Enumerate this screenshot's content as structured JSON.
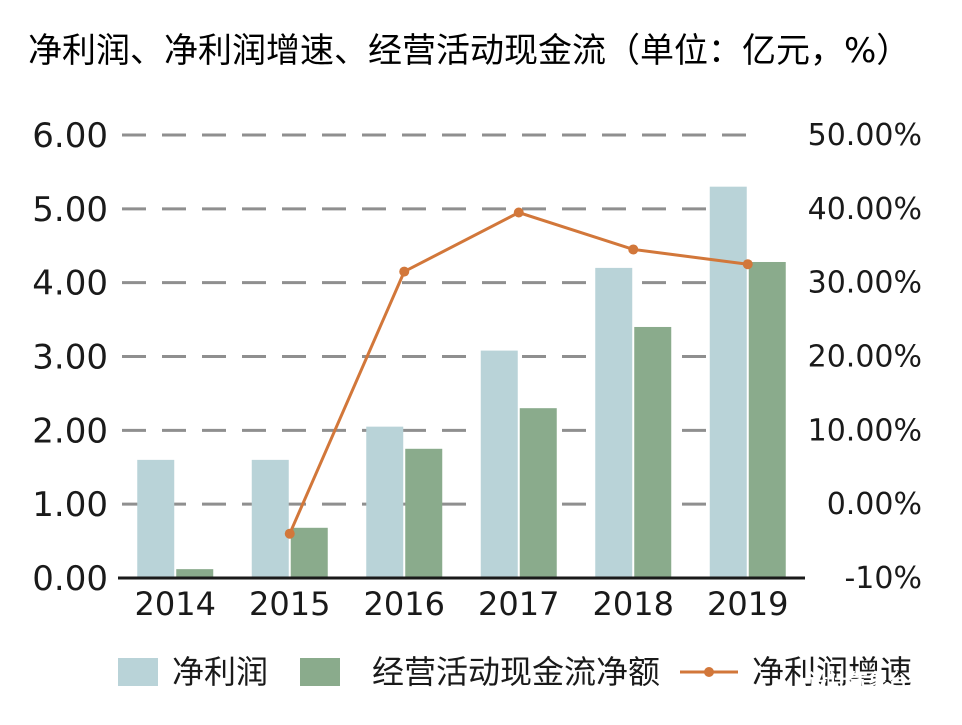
{
  "chart_data": {
    "type": "bar",
    "title": "净利润、净利润增速、经营活动现金流（单位：亿元，%）",
    "categories": [
      "2014",
      "2015",
      "2016",
      "2017",
      "2018",
      "2019"
    ],
    "series": [
      {
        "name": "净利润",
        "type": "bar",
        "axis": "left",
        "color": "#b9d3d8",
        "values": [
          1.6,
          1.6,
          2.05,
          3.08,
          4.2,
          5.3
        ]
      },
      {
        "name": "经营活动现金流净额",
        "type": "bar",
        "axis": "left",
        "color": "#8aab8c",
        "values": [
          0.12,
          0.68,
          1.75,
          2.3,
          3.4,
          4.28
        ]
      },
      {
        "name": "净利润增速",
        "type": "line",
        "axis": "right",
        "color": "#d2773a",
        "values": [
          null,
          -0.04,
          0.315,
          0.395,
          0.345,
          0.325
        ]
      }
    ],
    "left_axis": {
      "ticks": [
        "0.00",
        "1.00",
        "2.00",
        "3.00",
        "4.00",
        "5.00",
        "6.00"
      ],
      "ylim": [
        0,
        6
      ]
    },
    "right_axis": {
      "ticks": [
        "-10%",
        "0.00%",
        "10.00%",
        "20.00%",
        "30.00%",
        "40.00%",
        "50.00%"
      ],
      "ylim": [
        -0.1,
        0.5
      ]
    },
    "grid": "dashed horizontal",
    "legend": "bottom"
  },
  "watermark": {
    "line1": "设计气象台",
    "line2": "搜狐号@设计气象台"
  }
}
